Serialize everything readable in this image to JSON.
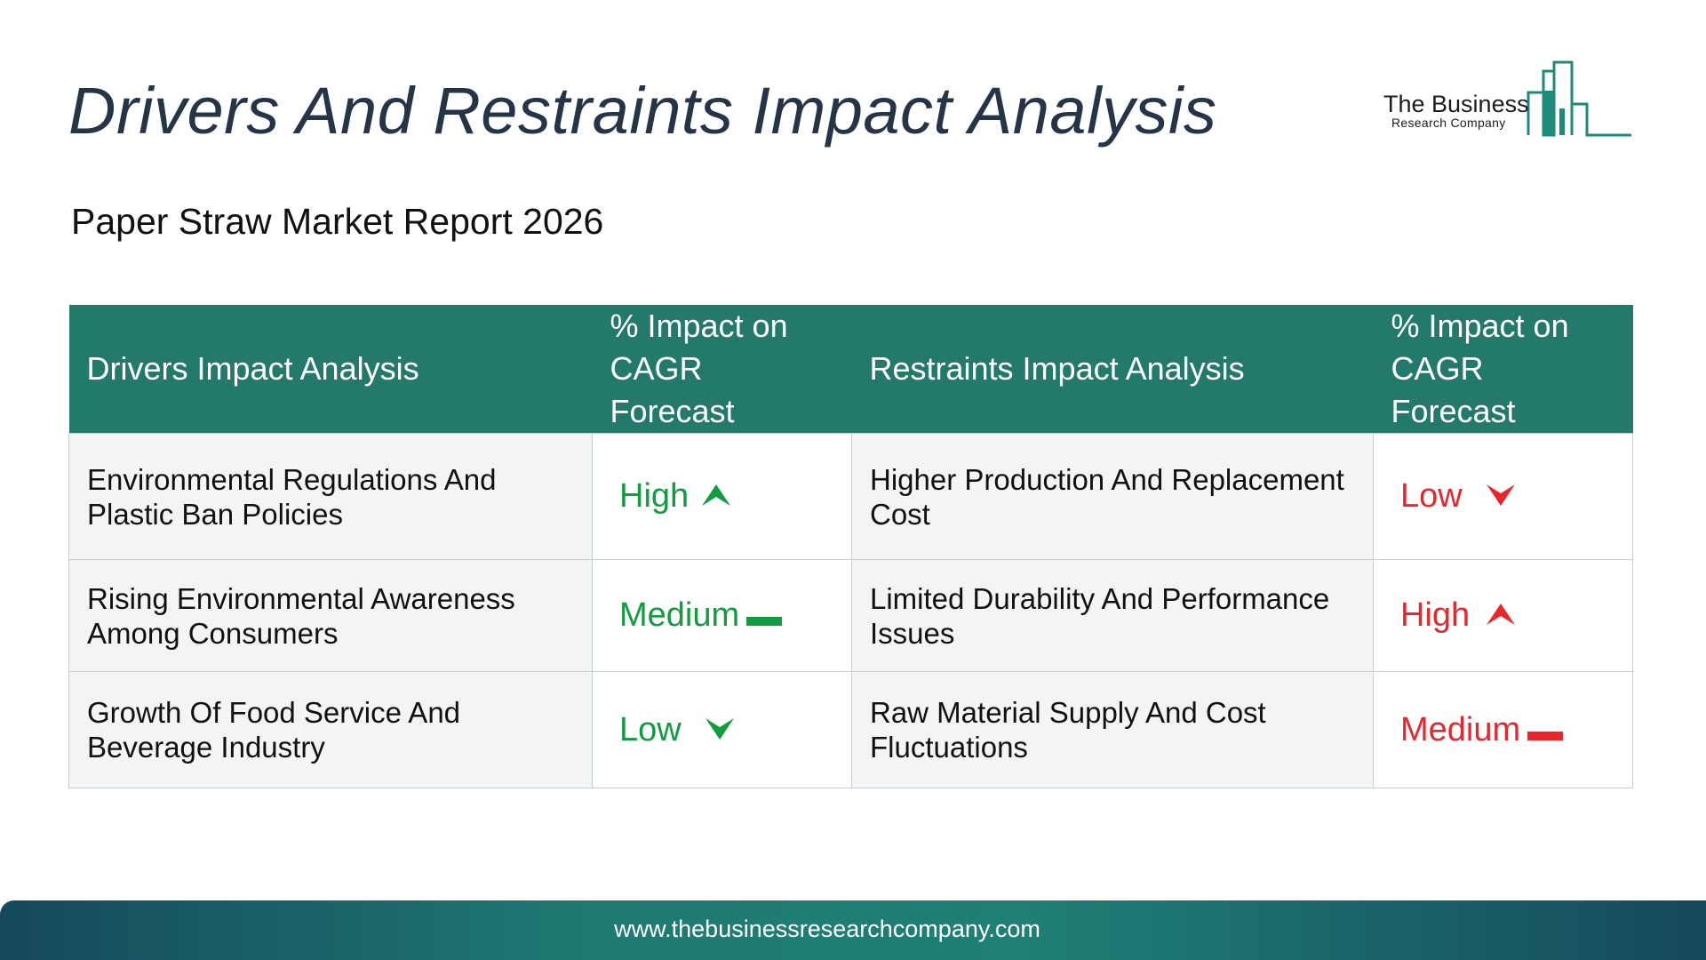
{
  "title": "Drivers And Restraints Impact Analysis",
  "subtitle": "Paper Straw Market Report 2026",
  "logo": {
    "line1": "The Business",
    "line2": "Research Company",
    "color": "#1e8a78"
  },
  "table": {
    "headers": {
      "drivers": "Drivers Impact Analysis",
      "drivers_impact": "% Impact on CAGR Forecast",
      "restraints": "Restraints Impact Analysis",
      "restraints_impact": "% Impact on CAGR Forecast"
    },
    "rows": [
      {
        "driver": "Environmental Regulations And Plastic Ban Policies",
        "driver_impact": "High",
        "driver_icon": "up-arrow-icon",
        "restraint": "Higher Production And Replacement Cost",
        "restraint_impact": "Low",
        "restraint_icon": "down-arrow-icon"
      },
      {
        "driver": "Rising Environmental Awareness Among Consumers",
        "driver_impact": "Medium",
        "driver_icon": "dash-icon",
        "restraint": "Limited Durability And Performance Issues",
        "restraint_impact": "High",
        "restraint_icon": "up-arrow-icon"
      },
      {
        "driver": "Growth Of Food Service And Beverage Industry",
        "driver_impact": "Low",
        "driver_icon": "down-arrow-icon",
        "restraint": "Raw Material Supply And Cost Fluctuations",
        "restraint_impact": "Medium",
        "restraint_icon": "dash-icon"
      }
    ]
  },
  "colors": {
    "header_bg": "#237a6b",
    "driver_level": "#0f9d3e",
    "restraint_level": "#e8262c"
  },
  "footer": {
    "url": "www.thebusinessresearchcompany.com"
  }
}
